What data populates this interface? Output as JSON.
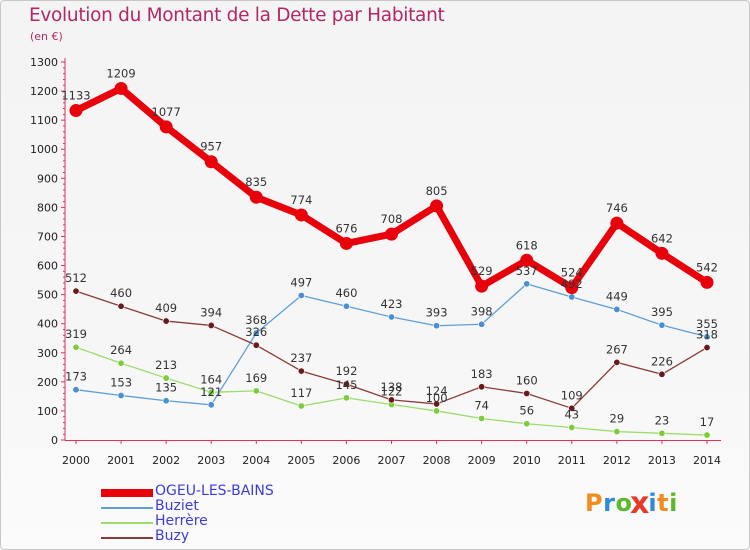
{
  "title": "Evolution du Montant de la Dette par Habitant",
  "unit": "(en €)",
  "logo": {
    "text": "Proxiti",
    "letter_colors": [
      "#f28c1e",
      "#2e8bd8",
      "#5cb82d",
      "#e83a2a",
      "#2e8bd8",
      "#f28c1e",
      "#5cb82d"
    ]
  },
  "chart_data": {
    "type": "line",
    "x": [
      2000,
      2001,
      2002,
      2003,
      2004,
      2005,
      2006,
      2007,
      2008,
      2009,
      2010,
      2011,
      2012,
      2013,
      2014
    ],
    "ylim": [
      0,
      1300
    ],
    "yticks": [
      0,
      100,
      200,
      300,
      400,
      500,
      600,
      700,
      800,
      900,
      1000,
      1100,
      1200,
      1300
    ],
    "grid": false,
    "legend_position": "bottom-left",
    "series": [
      {
        "name": "OGEU-LES-BAINS",
        "color": "#e8000a",
        "emphasis": true,
        "values": [
          1133,
          1209,
          1077,
          957,
          835,
          774,
          676,
          708,
          805,
          529,
          618,
          524,
          746,
          642,
          542
        ],
        "labels": [
          "1133",
          "1209",
          "1077",
          "957",
          "835",
          "774",
          "676",
          "708",
          "805",
          "529",
          "618",
          "524",
          "746",
          "642",
          "542"
        ]
      },
      {
        "name": "Buziet",
        "color": "#5e9fd6",
        "point_color": "#4a8fd0",
        "values": [
          173,
          153,
          135,
          121,
          368,
          497,
          460,
          423,
          393,
          398,
          537,
          492,
          449,
          395,
          355
        ],
        "labels": [
          "173",
          "153",
          "135",
          "121",
          "368",
          "497",
          "460",
          "423",
          "393",
          "398",
          "537",
          "492",
          "449",
          "395",
          "355"
        ]
      },
      {
        "name": "Herrère",
        "color": "#9cdc6c",
        "point_color": "#7ccc3c",
        "values": [
          319,
          264,
          213,
          164,
          169,
          117,
          145,
          122,
          100,
          74,
          56,
          43,
          29,
          23,
          17
        ],
        "labels": [
          "319",
          "264",
          "213",
          "164",
          "169",
          "117",
          "145",
          "122",
          "100",
          "74",
          "56",
          "43",
          "29",
          "23",
          "17"
        ]
      },
      {
        "name": "Buzy",
        "color": "#8a3a3a",
        "point_color": "#6a1a1a",
        "values": [
          512,
          460,
          409,
          394,
          326,
          237,
          192,
          138,
          124,
          183,
          160,
          109,
          267,
          226,
          318
        ],
        "labels": [
          "512",
          "460",
          "409",
          "394",
          "326",
          "237",
          "192",
          "138",
          "124",
          "183",
          "160",
          "109",
          "267",
          "226",
          "318"
        ]
      }
    ]
  }
}
